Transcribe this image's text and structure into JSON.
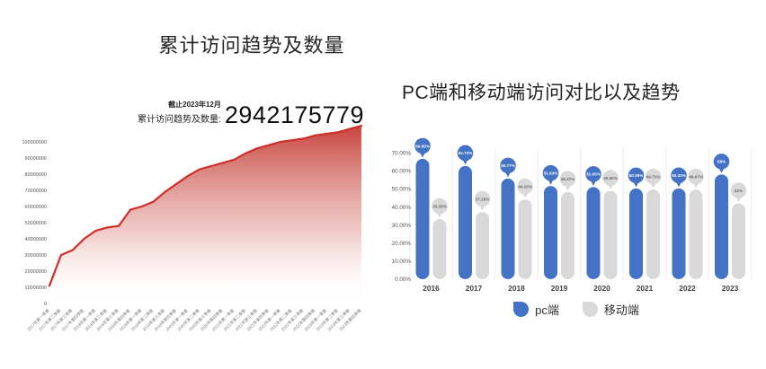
{
  "chart_data": [
    {
      "id": "cumulative-visits-area",
      "type": "area",
      "title": "累计访问趋势及数量",
      "annotation": {
        "line1": "截止2023年12月",
        "line2": "累计访问趋势及数量:",
        "value": "2942175779"
      },
      "line_color": "#cf2e26",
      "fill_top_color": "#c43a33",
      "ylim": [
        0,
        110000000
      ],
      "grid": false,
      "y_ticks": [
        0,
        10000000,
        20000000,
        30000000,
        40000000,
        50000000,
        60000000,
        70000000,
        80000000,
        90000000,
        100000000
      ],
      "x": [
        "2017年第一季度",
        "2017年第二季度",
        "2017年第三季度",
        "2017年第四季度",
        "2018年第一季度",
        "2018年第二季度",
        "2018年第三季度",
        "2018年第四季度",
        "2019年第一季度",
        "2019年第二季度",
        "2019年第三季度",
        "2019年第四季度",
        "2020年第一季度",
        "2020年第二季度",
        "2020年第三季度",
        "2020年第四季度",
        "2021年第一季度",
        "2021年第二季度",
        "2021年第三季度",
        "2021年第四季度",
        "2022年第一季度",
        "2022年第二季度",
        "2022年第三季度",
        "2022年第四季度",
        "2023年第一季度",
        "2023年第二季度",
        "2023年第三季度",
        "2023年第四季度"
      ],
      "values": [
        11000000,
        30000000,
        33000000,
        40000000,
        45000000,
        47000000,
        48000000,
        58000000,
        60000000,
        63000000,
        69000000,
        74000000,
        79000000,
        83000000,
        85000000,
        87000000,
        89000000,
        93000000,
        96000000,
        98000000,
        100000000,
        101000000,
        102000000,
        104000000,
        105000000,
        106000000,
        108000000,
        110000000
      ]
    },
    {
      "id": "pc-vs-mobile-bars",
      "type": "bar",
      "title": "PC端和移动端访问对比以及趋势",
      "categories": [
        "2016",
        "2017",
        "2018",
        "2019",
        "2020",
        "2021",
        "2022",
        "2023"
      ],
      "ylim": [
        0,
        70
      ],
      "grid": false,
      "legend_position": "bottom",
      "y_ticks": [
        "0.00%",
        "10.00%",
        "20.00%",
        "30.00%",
        "40.00%",
        "50.00%",
        "60.00%",
        "70.00%"
      ],
      "series": [
        {
          "name": "pc端",
          "color": "#4472c4",
          "label_text_color": "#ffffff",
          "values": [
            66.65,
            62.72,
            55.77,
            51.63,
            51.05,
            50.29,
            50.33,
            58
          ],
          "labels": [
            "66.65%",
            "62.72%",
            "55.77%",
            "51.63%",
            "51.05%",
            "50.29%",
            "50.33%",
            "58%"
          ]
        },
        {
          "name": "移动端",
          "color": "#d9d9d9",
          "label_text_color": "#6b6b6b",
          "values": [
            33.35,
            37.28,
            44.23,
            48.37,
            48.95,
            49.71,
            49.67,
            42
          ],
          "labels": [
            "33.35%",
            "37.28%",
            "44.23%",
            "48.37%",
            "48.95%",
            "49.71%",
            "49.67%",
            "42%"
          ]
        }
      ]
    }
  ]
}
